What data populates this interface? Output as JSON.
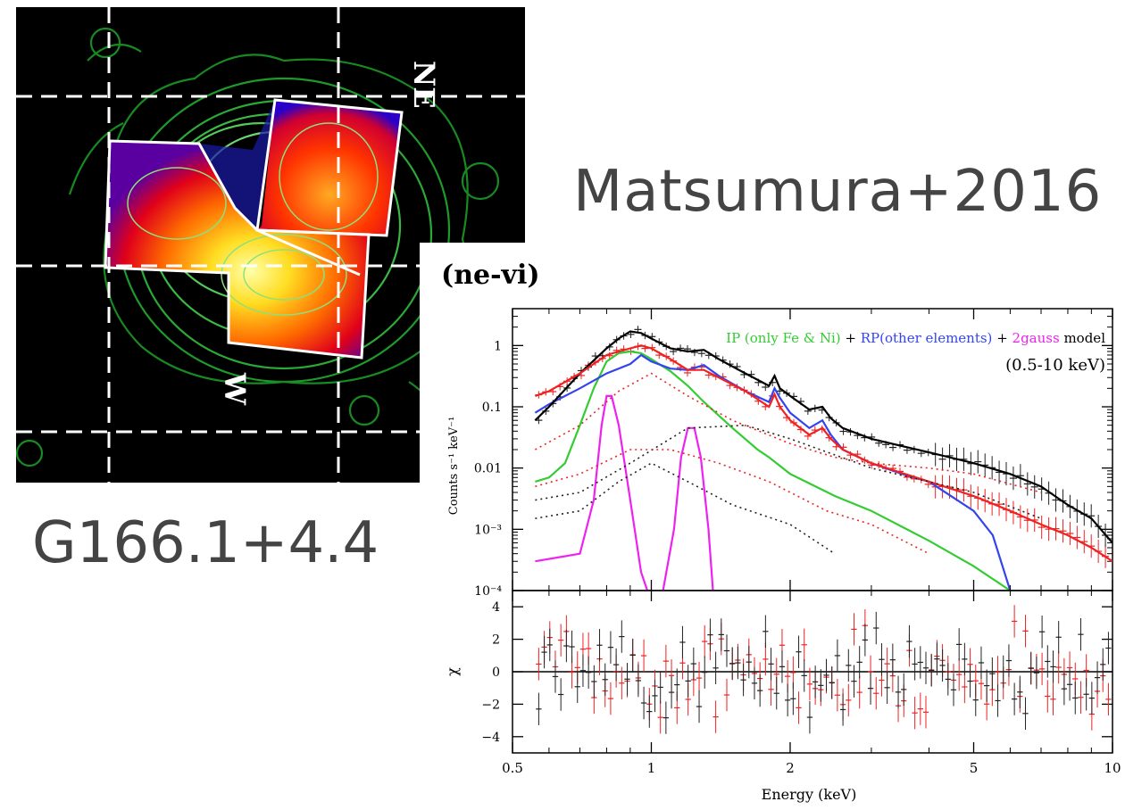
{
  "image_labels": {
    "reference": "Matsumura+2016",
    "object": "G166.1+4.4",
    "region_ne": "NE",
    "region_w": "W"
  },
  "chart_data": {
    "type": "line",
    "panel_label": "(ne-vi)",
    "legend": {
      "parts": [
        {
          "text": "IP (only Fe & Ni)",
          "color": "#33cc33"
        },
        {
          "text": " + ",
          "color": "#000000"
        },
        {
          "text": "RP(other elements)",
          "color": "#3344ee"
        },
        {
          "text": " + ",
          "color": "#000000"
        },
        {
          "text": "2gauss",
          "color": "#ee22ee"
        },
        {
          "text": " model",
          "color": "#000000"
        }
      ],
      "band": "(0.5-10 keV)",
      "placement": "top-right"
    },
    "xlabel": "Energy (keV)",
    "xscale": "log",
    "xlim": [
      0.5,
      10
    ],
    "xticks": [
      0.5,
      1,
      2,
      5,
      10
    ],
    "xtick_labels": [
      "0.5",
      "1",
      "2",
      "5",
      "10"
    ],
    "top_panel": {
      "ylabel": "Counts s⁻¹ keV⁻¹",
      "yscale": "log",
      "ylim": [
        0.0001,
        4
      ],
      "yticks": [
        1,
        0.1,
        0.01,
        0.001,
        0.0001
      ],
      "ytick_labels": [
        "1",
        "0.1",
        "0.01",
        "10⁻³",
        "10⁻⁴"
      ]
    },
    "bottom_panel": {
      "ylabel": "χ",
      "ylim": [
        -5,
        5
      ],
      "yticks": [
        4,
        2,
        0,
        -2,
        -4
      ],
      "ytick_labels": [
        "4",
        "2",
        "0",
        "−2",
        "−4"
      ]
    },
    "series": [
      {
        "name": "IP (only Fe & Ni)",
        "color": "#33cc33",
        "style": "solid",
        "x": [
          0.56,
          0.6,
          0.65,
          0.7,
          0.75,
          0.8,
          0.85,
          0.9,
          0.95,
          1.0,
          1.1,
          1.2,
          1.3,
          1.5,
          1.7,
          1.8,
          2.0,
          2.5,
          3.0,
          4.0,
          5.0,
          6.0
        ],
        "y": [
          0.006,
          0.007,
          0.012,
          0.05,
          0.2,
          0.55,
          0.75,
          0.8,
          0.75,
          0.6,
          0.38,
          0.22,
          0.12,
          0.045,
          0.02,
          0.015,
          0.008,
          0.0035,
          0.002,
          0.00065,
          0.00025,
          0.0001
        ]
      },
      {
        "name": "RP(other elements)",
        "color": "#3344ee",
        "style": "solid",
        "x": [
          0.56,
          0.6,
          0.7,
          0.8,
          0.9,
          0.95,
          1.0,
          1.1,
          1.2,
          1.3,
          1.4,
          1.6,
          1.8,
          1.85,
          1.9,
          2.0,
          2.2,
          2.35,
          2.45,
          2.6,
          3.0,
          3.5,
          4.0,
          5.0,
          5.5,
          6.0
        ],
        "y": [
          0.08,
          0.11,
          0.2,
          0.35,
          0.5,
          0.7,
          0.55,
          0.42,
          0.4,
          0.48,
          0.32,
          0.18,
          0.12,
          0.2,
          0.14,
          0.08,
          0.045,
          0.06,
          0.035,
          0.02,
          0.012,
          0.008,
          0.006,
          0.002,
          0.0008,
          0.0001
        ]
      },
      {
        "name": "2gauss gauss1",
        "color": "#ee22ee",
        "style": "solid",
        "x": [
          0.56,
          0.7,
          0.75,
          0.78,
          0.8,
          0.82,
          0.85,
          0.9,
          0.95,
          0.98,
          1.0
        ],
        "y": [
          0.0003,
          0.0004,
          0.003,
          0.05,
          0.15,
          0.15,
          0.05,
          0.003,
          0.0002,
          0.0001,
          0.0001
        ]
      },
      {
        "name": "2gauss gauss2",
        "color": "#ee22ee",
        "style": "solid",
        "x": [
          1.06,
          1.12,
          1.16,
          1.2,
          1.24,
          1.28,
          1.33,
          1.36
        ],
        "y": [
          0.0001,
          0.001,
          0.015,
          0.045,
          0.045,
          0.015,
          0.001,
          0.0001
        ]
      },
      {
        "name": "total model (data 1)",
        "color": "#000000",
        "style": "solid",
        "x": [
          0.56,
          0.6,
          0.7,
          0.8,
          0.85,
          0.9,
          0.95,
          1.0,
          1.1,
          1.2,
          1.3,
          1.4,
          1.6,
          1.8,
          1.85,
          1.9,
          2.0,
          2.2,
          2.35,
          2.45,
          2.6,
          3.0,
          4.0,
          5.0,
          6.0,
          7.0,
          8.0,
          9.0,
          10.0
        ],
        "y": [
          0.06,
          0.1,
          0.35,
          0.9,
          1.3,
          1.7,
          1.6,
          1.3,
          0.9,
          0.8,
          0.85,
          0.6,
          0.35,
          0.22,
          0.32,
          0.2,
          0.15,
          0.09,
          0.1,
          0.065,
          0.045,
          0.03,
          0.018,
          0.012,
          0.008,
          0.005,
          0.0025,
          0.0015,
          0.0006
        ]
      },
      {
        "name": "total model (data 2)",
        "color": "#ee2222",
        "style": "solid",
        "x": [
          0.56,
          0.6,
          0.7,
          0.8,
          0.9,
          0.95,
          1.0,
          1.1,
          1.2,
          1.3,
          1.4,
          1.6,
          1.8,
          1.85,
          1.9,
          2.0,
          2.2,
          2.35,
          2.45,
          2.6,
          3.0,
          4.0,
          5.0,
          6.0,
          7.0,
          8.0,
          9.0,
          10.0
        ],
        "y": [
          0.15,
          0.18,
          0.35,
          0.7,
          0.9,
          1.0,
          0.9,
          0.6,
          0.4,
          0.4,
          0.3,
          0.18,
          0.1,
          0.16,
          0.1,
          0.06,
          0.035,
          0.045,
          0.03,
          0.02,
          0.012,
          0.006,
          0.0035,
          0.002,
          0.0012,
          0.0008,
          0.0005,
          0.0003
        ]
      },
      {
        "name": "component (dotted, black) 1",
        "color": "#222222",
        "style": "dotted",
        "x": [
          0.56,
          0.7,
          0.9,
          1.2,
          1.6,
          2.0,
          3.0,
          5.0,
          7.0
        ],
        "y": [
          0.003,
          0.004,
          0.012,
          0.045,
          0.05,
          0.03,
          0.01,
          0.004,
          0.0015
        ]
      },
      {
        "name": "component (dotted, black) 2",
        "color": "#222222",
        "style": "dotted",
        "x": [
          0.56,
          0.7,
          0.85,
          1.0,
          1.2,
          1.5,
          2.0,
          2.5
        ],
        "y": [
          0.0015,
          0.002,
          0.006,
          0.012,
          0.006,
          0.0025,
          0.0012,
          0.0004
        ]
      },
      {
        "name": "component (dotted, red) 1",
        "color": "#ee2222",
        "style": "dotted",
        "x": [
          0.56,
          0.7,
          0.85,
          1.0,
          1.2,
          1.5,
          2.0,
          2.5,
          3.0,
          4.0,
          5.0,
          7.0
        ],
        "y": [
          0.02,
          0.05,
          0.18,
          0.35,
          0.15,
          0.06,
          0.025,
          0.015,
          0.012,
          0.01,
          0.008,
          0.004
        ]
      },
      {
        "name": "component (dotted, red) 2",
        "color": "#ee2222",
        "style": "dotted",
        "x": [
          0.56,
          0.7,
          0.9,
          1.1,
          1.4,
          1.8,
          2.4,
          3.0,
          4.0
        ],
        "y": [
          0.005,
          0.008,
          0.02,
          0.02,
          0.012,
          0.006,
          0.002,
          0.0012,
          0.0004
        ]
      }
    ],
    "data_points": [
      {
        "name": "data 1",
        "color": "#000000"
      },
      {
        "name": "data 2",
        "color": "#ee2222"
      }
    ]
  }
}
